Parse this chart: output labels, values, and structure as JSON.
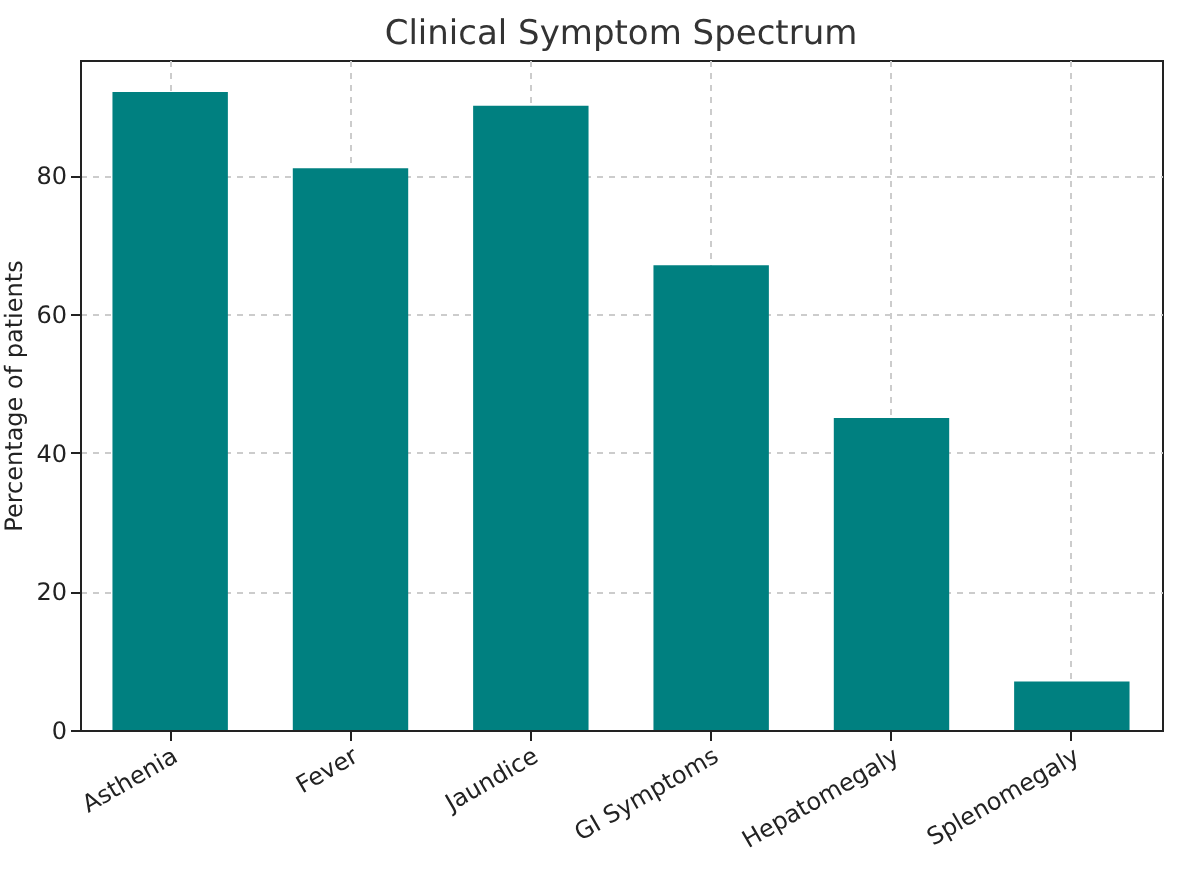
{
  "chart_data": {
    "type": "bar",
    "title": "Clinical Symptom Spectrum",
    "ylabel": "Percentage of patients",
    "categories": [
      "Asthenia",
      "Fever",
      "Jaundice",
      "GI Symptoms",
      "Hepatomegaly",
      "Splenomegaly"
    ],
    "values": [
      92,
      81,
      90,
      67,
      45,
      7
    ],
    "color": "#008080",
    "ylim": [
      0,
      96.6
    ],
    "yticks": [
      0,
      20,
      40,
      60,
      80
    ],
    "grid": true
  }
}
